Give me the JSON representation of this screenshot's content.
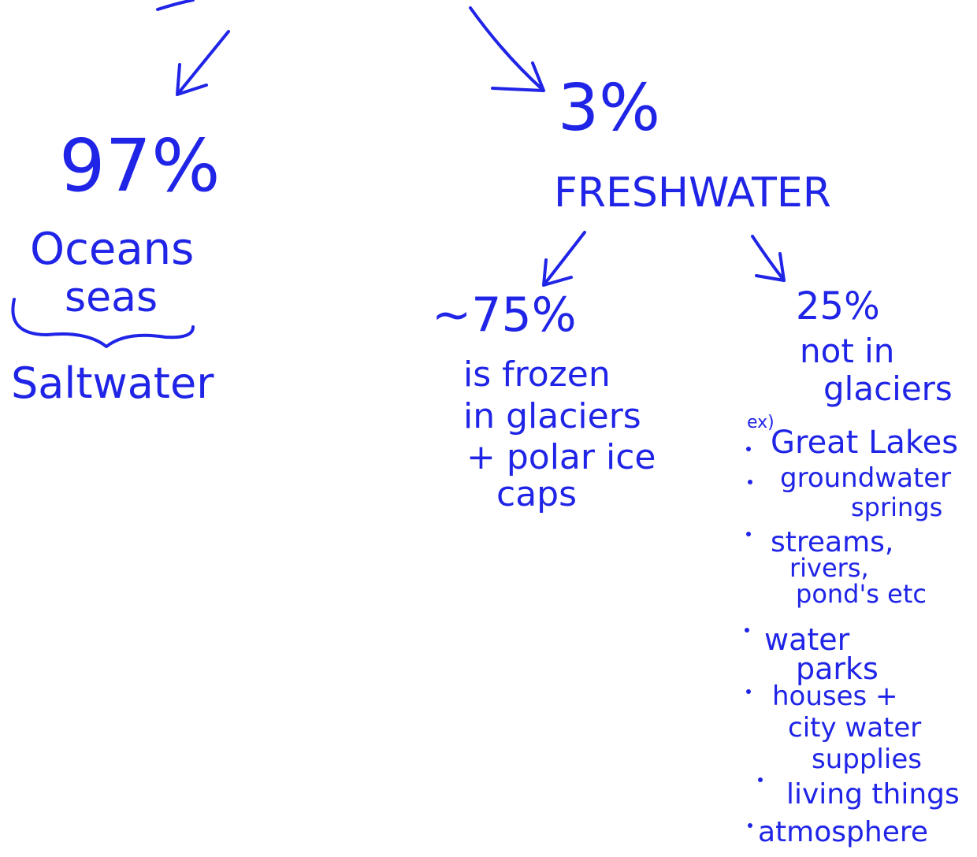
{
  "left": {
    "percent": "97%",
    "lines": [
      "Oceans",
      "seas"
    ],
    "label": "Saltwater"
  },
  "right": {
    "percent": "3%",
    "label": "FRESHWATER",
    "frozen": {
      "percent": "~75%",
      "lines": [
        "is frozen",
        "in glaciers",
        "+ polar ice",
        "caps"
      ]
    },
    "liquid": {
      "percent": "25%",
      "lines": [
        "not in",
        "glaciers"
      ],
      "prefix": "ex)",
      "items": [
        {
          "lines": [
            "Great Lakes"
          ]
        },
        {
          "lines": [
            "groundwater",
            "springs"
          ]
        },
        {
          "lines": [
            "streams,",
            "rivers,",
            "pond's etc"
          ]
        },
        {
          "lines": [
            "water",
            "parks"
          ]
        },
        {
          "lines": [
            "houses +",
            "city water",
            "supplies"
          ]
        },
        {
          "lines": [
            "living things"
          ]
        },
        {
          "lines": [
            "atmosphere"
          ]
        }
      ]
    }
  }
}
